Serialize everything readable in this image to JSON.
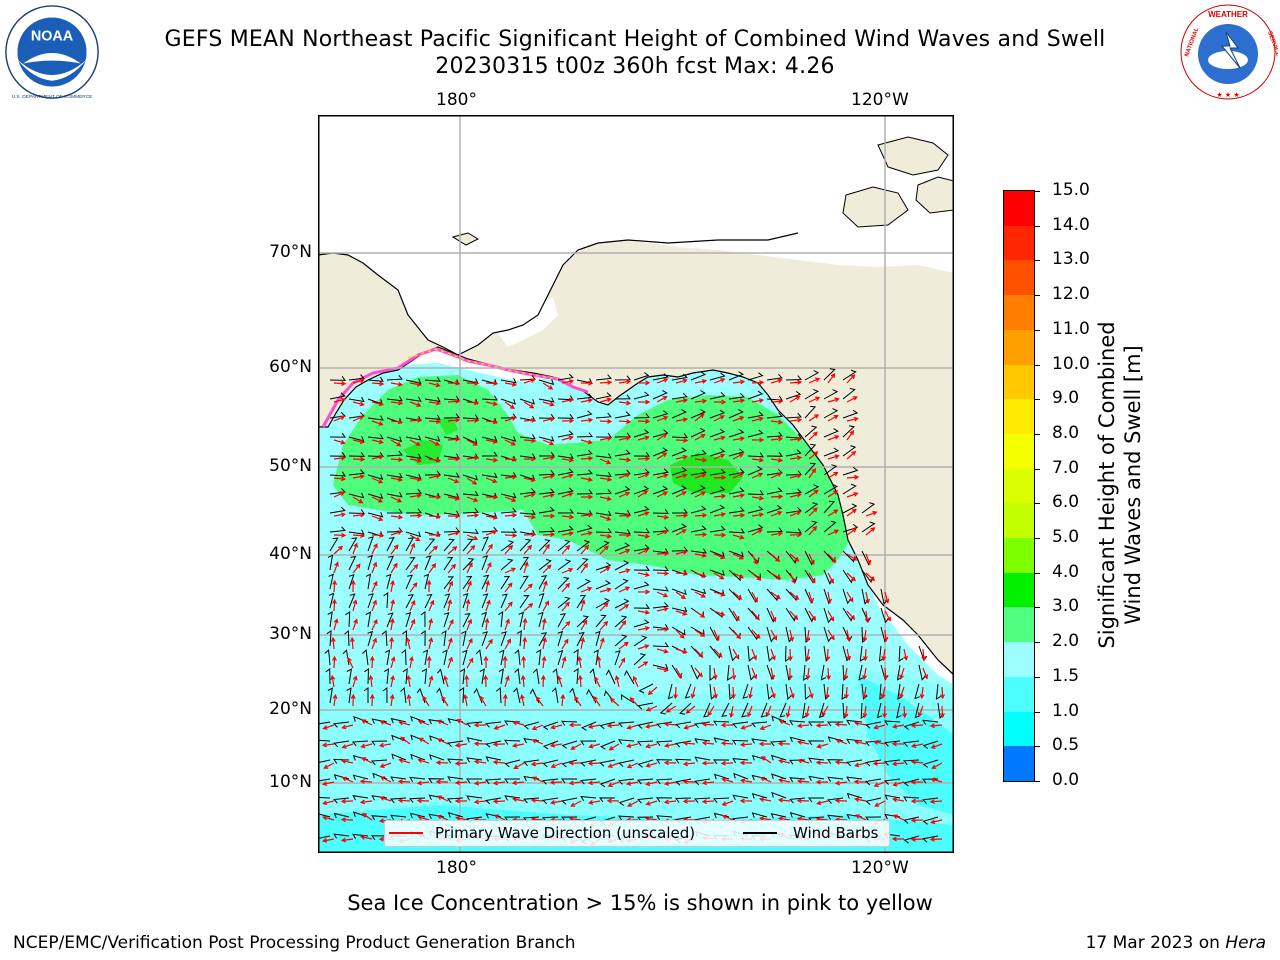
{
  "title": {
    "line1": "GEFS MEAN Northeast Pacific Significant Height of Combined Wind Waves and Swell",
    "line2": "20230315 t00z 360h fcst   Max: 4.26"
  },
  "logos": {
    "noaa": {
      "icon": "noaa-logo",
      "text": "NOAA",
      "ring_text": "NATIONAL OCEANIC AND ATMOSPHERIC ADMINISTRATION · U.S. DEPARTMENT OF COMMERCE"
    },
    "nws": {
      "icon": "nws-logo",
      "ring_text": "NATIONAL WEATHER SERVICE"
    }
  },
  "map": {
    "lon_labels_top": [
      "180°",
      "120°W"
    ],
    "lon_labels_bottom": [
      "180°",
      "120°W"
    ],
    "lat_labels": [
      "70°N",
      "60°N",
      "50°N",
      "40°N",
      "30°N",
      "20°N",
      "10°N"
    ],
    "colors": {
      "land": "#efedda",
      "ocean_low": "#9cfefe",
      "ocean_mid": "#4efd7c",
      "ocean_high": "#21e821",
      "wave_arrow": "#ff0000",
      "barb": "#000000"
    },
    "legend": {
      "wave_label": "Primary Wave Direction (unscaled)",
      "barb_label": "Wind Barbs"
    }
  },
  "colorbar": {
    "label_line1": "Significant Height of Combined",
    "label_line2": "Wind Waves and Swell [m]",
    "ticks": [
      "15.0",
      "14.0",
      "13.0",
      "12.0",
      "11.0",
      "10.0",
      "9.0",
      "8.0",
      "7.0",
      "6.0",
      "5.0",
      "4.0",
      "3.0",
      "2.0",
      "1.5",
      "1.0",
      "0.5",
      "0.0"
    ],
    "colors_top_to_bottom": [
      "#ff0000",
      "#ff2600",
      "#ff5000",
      "#ff7d00",
      "#ffa000",
      "#ffc800",
      "#ffeb00",
      "#f5ff00",
      "#dcff00",
      "#c3ff00",
      "#7dff00",
      "#00f000",
      "#50ff80",
      "#9cfefe",
      "#4cfefe",
      "#00ffff",
      "#0078ff",
      "#0000ff"
    ]
  },
  "footnote": "Sea Ice Concentration > 15% is shown in pink to yellow",
  "credit": "NCEP/EMC/Verification Post Processing Product Generation Branch",
  "stamp": {
    "date": "17 Mar 2023 on",
    "host": "Hera"
  }
}
